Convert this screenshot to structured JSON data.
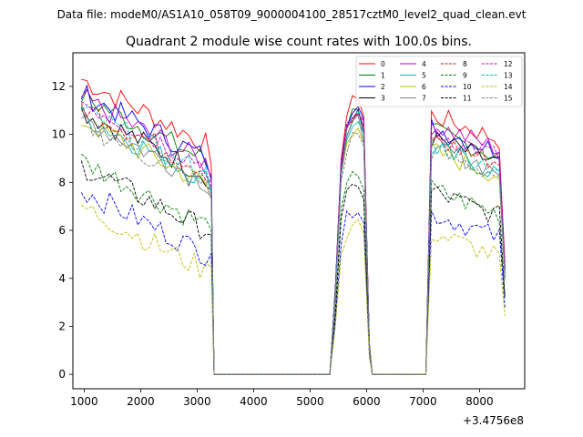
{
  "header": {
    "file_label": "Data file: modeM0/AS1A10_058T09_9000004100_28517cztM0_level2_quad_clean.evt"
  },
  "chart_data": {
    "type": "line",
    "title": "Quadrant 2 module wise count rates with 100.0s bins.",
    "xlabel": "",
    "ylabel": "",
    "offset_text": "+3.4756e8",
    "xlim": [
      800,
      8800
    ],
    "ylim": [
      -0.6,
      13.4
    ],
    "x_ticks": [
      1000,
      2000,
      3000,
      4000,
      5000,
      6000,
      7000,
      8000
    ],
    "y_ticks": [
      0,
      2,
      4,
      6,
      8,
      10,
      12
    ],
    "segments": [
      {
        "start": 950,
        "end": 3250
      },
      {
        "start": 5350,
        "end": 6050
      },
      {
        "start": 7050,
        "end": 8450
      }
    ],
    "legend_location": "top-right",
    "series": [
      {
        "name": "0",
        "color": "#ff0000",
        "dash": "solid",
        "seg_means": [
          10.9,
          10.8,
          10.3
        ]
      },
      {
        "name": "1",
        "color": "#008000",
        "dash": "solid",
        "seg_means": [
          10.2,
          10.4,
          9.6
        ]
      },
      {
        "name": "2",
        "color": "#0000ff",
        "dash": "solid",
        "seg_means": [
          10.3,
          10.6,
          9.8
        ]
      },
      {
        "name": "3",
        "color": "#000000",
        "dash": "solid",
        "seg_means": [
          9.6,
          10.0,
          9.3
        ]
      },
      {
        "name": "4",
        "color": "#c000c0",
        "dash": "solid",
        "seg_means": [
          10.1,
          10.3,
          9.9
        ]
      },
      {
        "name": "5",
        "color": "#00bfbf",
        "dash": "solid",
        "seg_means": [
          9.4,
          9.9,
          8.9
        ]
      },
      {
        "name": "6",
        "color": "#bfbf00",
        "dash": "solid",
        "seg_means": [
          9.2,
          9.7,
          8.8
        ]
      },
      {
        "name": "7",
        "color": "#808080",
        "dash": "solid",
        "seg_means": [
          9.3,
          9.8,
          9.0
        ]
      },
      {
        "name": "8",
        "color": "#ff0000",
        "dash": "dashed",
        "seg_means": [
          9.8,
          10.1,
          9.3
        ]
      },
      {
        "name": "9",
        "color": "#008000",
        "dash": "dashed",
        "seg_means": [
          7.5,
          7.8,
          7.2
        ]
      },
      {
        "name": "10",
        "color": "#0000ff",
        "dash": "dashed",
        "seg_means": [
          6.3,
          6.5,
          6.2
        ]
      },
      {
        "name": "11",
        "color": "#000000",
        "dash": "dashed",
        "seg_means": [
          7.3,
          7.4,
          7.1
        ]
      },
      {
        "name": "12",
        "color": "#c000c0",
        "dash": "dashed",
        "seg_means": [
          10.0,
          10.2,
          9.6
        ]
      },
      {
        "name": "13",
        "color": "#00bfbf",
        "dash": "dashed",
        "seg_means": [
          9.6,
          10.0,
          9.1
        ]
      },
      {
        "name": "14",
        "color": "#bfbf00",
        "dash": "dashed",
        "seg_means": [
          5.6,
          5.9,
          5.4
        ]
      },
      {
        "name": "15",
        "color": "#808080",
        "dash": "dashed",
        "seg_means": [
          9.1,
          9.4,
          8.8
        ]
      }
    ]
  }
}
